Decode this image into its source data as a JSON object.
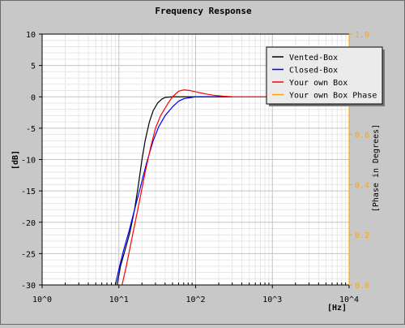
{
  "chart_data": {
    "type": "line",
    "title": "Frequency Response",
    "xlabel": "[Hz]",
    "ylabel": "[dB]",
    "y2label": "[Phase in Degrees]",
    "x_scale": "log10",
    "xlim": [
      1,
      10000
    ],
    "ylim": [
      -30,
      10
    ],
    "y2lim": [
      0.0,
      1.0
    ],
    "x_ticks": [
      "10^0",
      "10^1",
      "10^2",
      "10^3",
      "10^4"
    ],
    "y_ticks": [
      "10",
      "5",
      "0",
      "-5",
      "-10",
      "-15",
      "-20",
      "-25",
      "-30"
    ],
    "y2_ticks": [
      "1.0",
      "0.8",
      "0.6",
      "0.4",
      "0.2",
      "0.0"
    ],
    "grid": true,
    "legend_position": "top-right",
    "series": [
      {
        "name": "Vented-Box",
        "color": "#000000",
        "points": [
          [
            9.5,
            -30
          ],
          [
            10.5,
            -27
          ],
          [
            12,
            -24.5
          ],
          [
            14,
            -21.5
          ],
          [
            16,
            -18
          ],
          [
            18,
            -14
          ],
          [
            20,
            -10
          ],
          [
            22,
            -7
          ],
          [
            25,
            -4
          ],
          [
            28,
            -2.2
          ],
          [
            32,
            -1
          ],
          [
            36,
            -0.4
          ],
          [
            40,
            -0.1
          ],
          [
            50,
            0
          ],
          [
            100,
            0
          ],
          [
            200,
            0
          ],
          [
            300,
            0
          ]
        ]
      },
      {
        "name": "Closed-Box",
        "color": "#0000ff",
        "points": [
          [
            9,
            -30
          ],
          [
            10,
            -27.5
          ],
          [
            11.5,
            -24.5
          ],
          [
            13.5,
            -21.5
          ],
          [
            16,
            -18
          ],
          [
            19,
            -14.5
          ],
          [
            23,
            -10.5
          ],
          [
            28,
            -7
          ],
          [
            33,
            -4.8
          ],
          [
            40,
            -3
          ],
          [
            50,
            -1.6
          ],
          [
            60,
            -0.7
          ],
          [
            70,
            -0.3
          ],
          [
            100,
            0
          ],
          [
            200,
            0
          ],
          [
            300,
            0
          ]
        ]
      },
      {
        "name": "Your own Box",
        "color": "#ff0000",
        "points": [
          [
            11,
            -30
          ],
          [
            12.5,
            -27
          ],
          [
            14,
            -24
          ],
          [
            16,
            -20.5
          ],
          [
            19,
            -16
          ],
          [
            22,
            -12
          ],
          [
            26,
            -8
          ],
          [
            30,
            -5
          ],
          [
            35,
            -3
          ],
          [
            40,
            -1.8
          ],
          [
            45,
            -0.8
          ],
          [
            50,
            0
          ],
          [
            60,
            0.9
          ],
          [
            70,
            1.1
          ],
          [
            85,
            1
          ],
          [
            100,
            0.8
          ],
          [
            130,
            0.5
          ],
          [
            170,
            0.25
          ],
          [
            230,
            0.1
          ],
          [
            300,
            0
          ],
          [
            500,
            0
          ],
          [
            1000,
            0
          ],
          [
            2000,
            0
          ],
          [
            5000,
            0
          ],
          [
            10000,
            0
          ]
        ]
      },
      {
        "name": "Your own Box Phase",
        "color": "#ffa500",
        "points": []
      }
    ]
  }
}
